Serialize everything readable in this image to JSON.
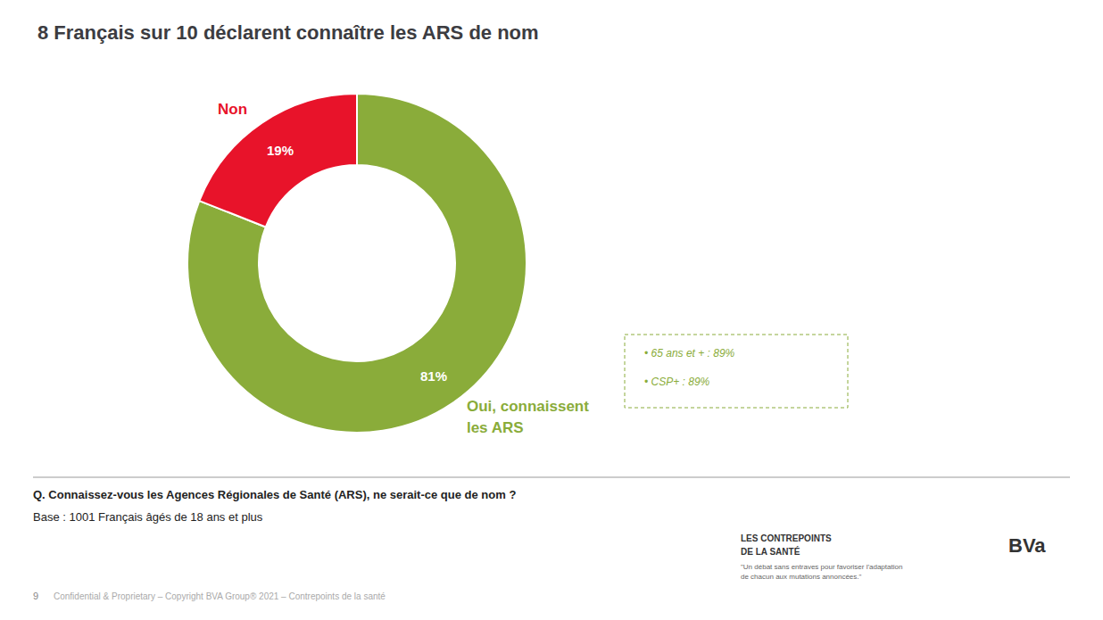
{
  "chart_data": {
    "type": "pie",
    "title": "8 Français sur 10 déclarent connaître les ARS de nom",
    "categories": [
      "Oui, connaissent\nles ARS",
      "Non"
    ],
    "values": [
      81,
      19
    ],
    "value_labels": [
      "81%",
      "19%"
    ],
    "colors": [
      "#8aac3a",
      "#e8132a"
    ],
    "data_labels": true,
    "annotations": [
      "• 65 ans et + : 89%",
      "• CSP+ : 89%",
      "Q. Connaissez-vous les Agences Régionales de Santé (ARS), ne serait-ce que de nom ?",
      "Base : 1001 Français âgés de 18 ans et plus",
      "9",
      "Confidential & Proprietary – Copyright BVA Group® 2021 – Contrepoints de la santé",
      "LES CONTREPOINTS",
      "DE LA SANTÉ",
      "\"Un débat sans entraves pour favoriser l'adaptation\nde chacun aux mutations annoncées.\"",
      "BVa"
    ]
  }
}
